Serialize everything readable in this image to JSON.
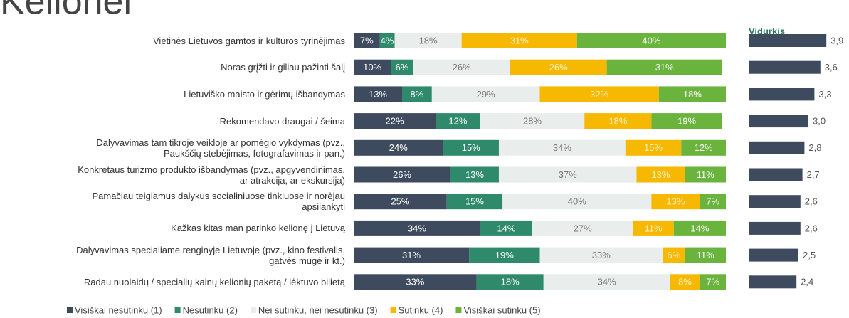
{
  "chart_data": {
    "type": "stacked_bar_h",
    "title": "Kelionei",
    "categories": [
      "Vietinės Lietuvos gamtos ir kultūros tyrinėjimas",
      "Noras grįžti ir giliau pažinti šalį",
      "Lietuviško maisto ir gėrimų išbandymas",
      "Rekomendavo draugai / šeima",
      "Dalyvavimas tam tikroje veikloje ar pomėgio vykdymas (pvz.,\nPaukščių stebėjimas, fotografavimas ir pan.)",
      "Konkretaus turizmo produkto išbandymas (pvz., apgyvendinimas,\nar atrakcija, ar ekskursija)",
      "Pamačiau teigiamus dalykus socialiniuose tinkluose ir norėjau\napsilankyti",
      "Kažkas kitas man parinko kelionę į Lietuvą",
      "Dalyvavimas specialiame renginyje Lietuvoje (pvz., kino festivalis,\ngatvės mugė ir kt.)",
      "Radau nuolaidų / specialių kainų kelionių paketą / lėktuvo bilietą"
    ],
    "series": [
      {
        "name": "Visiškai nesutinku (1)",
        "color": "#3e4a5e",
        "values": [
          7,
          10,
          13,
          22,
          24,
          26,
          25,
          34,
          31,
          33
        ],
        "value_labels": [
          "7%",
          "10%",
          "13%",
          "22%",
          "24%",
          "26%",
          "25%",
          "34%",
          "31%",
          "33%"
        ]
      },
      {
        "name": "Nesutinku (2)",
        "color": "#2f8a6c",
        "values": [
          4,
          6,
          8,
          12,
          15,
          13,
          15,
          14,
          19,
          18
        ],
        "value_labels": [
          "4%",
          "6%",
          "8%",
          "12%",
          "15%",
          "13%",
          "15%",
          "14%",
          "19%",
          "18%"
        ]
      },
      {
        "name": "Nei sutinku, nei nesutinku (3)",
        "color": "#e9edec",
        "values": [
          18,
          26,
          29,
          28,
          34,
          37,
          40,
          27,
          33,
          34
        ],
        "value_labels": [
          "18%",
          "26%",
          "29%",
          "28%",
          "34%",
          "37%",
          "40%",
          "27%",
          "33%",
          "34%"
        ]
      },
      {
        "name": "Sutinku (4)",
        "color": "#f6b800",
        "values": [
          31,
          26,
          32,
          18,
          15,
          13,
          13,
          11,
          6,
          8
        ],
        "value_labels": [
          "31%",
          "26%",
          "32%",
          "18%",
          "15%",
          "13%",
          "13%",
          "11%",
          "6%",
          "8%"
        ]
      },
      {
        "name": "Visiškai sutinku (5)",
        "color": "#6ab43e",
        "values": [
          40,
          31,
          18,
          19,
          12,
          11,
          7,
          14,
          11,
          7
        ],
        "value_labels": [
          "40%",
          "31%",
          "18%",
          "19%",
          "12%",
          "11%",
          "7%",
          "14%",
          "11%",
          "7%"
        ]
      }
    ],
    "mean": {
      "title": "Vidurkis",
      "color": "#3e4a5e",
      "values": [
        3.9,
        3.6,
        3.3,
        3.0,
        2.8,
        2.7,
        2.6,
        2.6,
        2.5,
        2.4
      ],
      "value_labels": [
        "3,9",
        "3,6",
        "3,3",
        "3,0",
        "2,8",
        "2,7",
        "2,6",
        "2,6",
        "2,5",
        "2,4"
      ]
    }
  }
}
